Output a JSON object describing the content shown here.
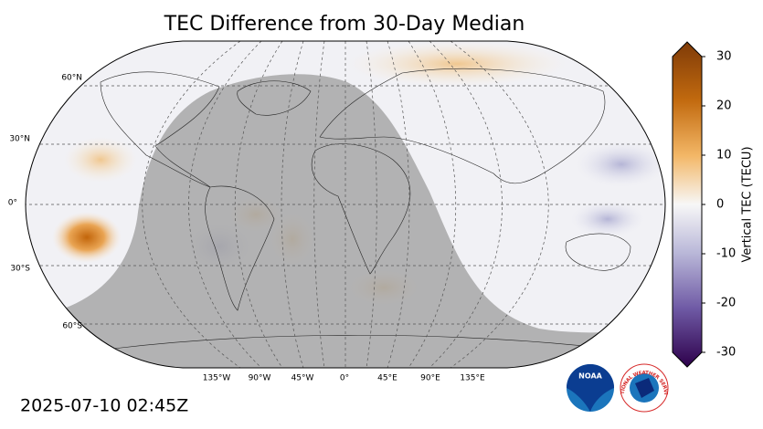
{
  "title": "TEC Difference from 30-Day Median",
  "timestamp": "2025-07-10 02:45Z",
  "map": {
    "lat_labels": [
      "60°N",
      "30°N",
      "0°",
      "30°S",
      "60°S"
    ],
    "lon_labels": [
      "135°W",
      "90°W",
      "45°W",
      "0°",
      "45°E",
      "90°E",
      "135°E"
    ]
  },
  "colorbar": {
    "label": "Vertical TEC (TECU)",
    "lim": [
      -30,
      30
    ],
    "ticks": [
      30,
      20,
      10,
      0,
      -10,
      -20,
      -30
    ]
  },
  "logos": {
    "noaa": "NOAA",
    "nws": "NATIONAL WEATHER SERVICE"
  }
}
